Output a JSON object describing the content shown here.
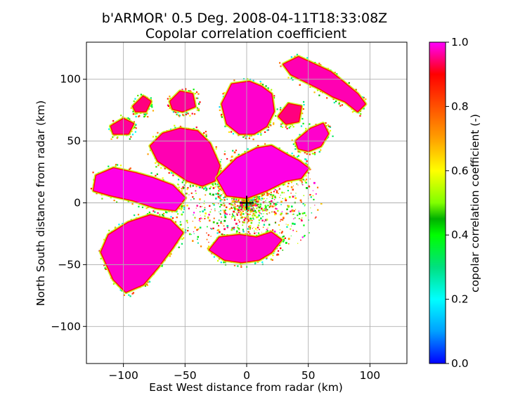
{
  "chart_data": {
    "type": "heatmap",
    "title": "b'ARMOR' 0.5 Deg. 2008-04-11T18:33:08Z",
    "subtitle": "Copolar correlation coefficient",
    "xlabel": "East West distance from radar (km)",
    "ylabel": "North South distance from radar (km)",
    "xlim": [
      -130,
      130
    ],
    "ylim": [
      -130,
      130
    ],
    "xticks": [
      -100,
      -50,
      0,
      50,
      100
    ],
    "yticks": [
      -100,
      -50,
      0,
      50,
      100
    ],
    "xtick_labels": [
      "−100",
      "−50",
      "0",
      "50",
      "100"
    ],
    "ytick_labels": [
      "−100",
      "−50",
      "0",
      "50",
      "100"
    ],
    "grid": true,
    "radar_marker": {
      "x": 0,
      "y": 0,
      "symbol": "+"
    },
    "colorbar": {
      "label": "copolar correlation coefficient (-)",
      "vmin": 0.0,
      "vmax": 1.0,
      "ticks": [
        0.0,
        0.2,
        0.4,
        0.6,
        0.8,
        1.0
      ],
      "tick_labels": [
        "0.0",
        "0.2",
        "0.4",
        "0.6",
        "0.8",
        "1.0"
      ],
      "colormap_stops": [
        {
          "v": 0.0,
          "color": "#0000ff"
        },
        {
          "v": 0.1,
          "color": "#00a0ff"
        },
        {
          "v": 0.2,
          "color": "#00ffff"
        },
        {
          "v": 0.3,
          "color": "#00e080"
        },
        {
          "v": 0.4,
          "color": "#00ff00"
        },
        {
          "v": 0.45,
          "color": "#00b000"
        },
        {
          "v": 0.5,
          "color": "#80ff00"
        },
        {
          "v": 0.6,
          "color": "#ffff00"
        },
        {
          "v": 0.7,
          "color": "#ffa000"
        },
        {
          "v": 0.8,
          "color": "#ff5000"
        },
        {
          "v": 0.9,
          "color": "#ff0000"
        },
        {
          "v": 1.0,
          "color": "#ff00ff"
        }
      ]
    },
    "echo_regions": [
      {
        "name": "northeast-arc",
        "rho": 0.97,
        "polygon": [
          [
            30,
            112
          ],
          [
            42,
            118
          ],
          [
            55,
            112
          ],
          [
            68,
            106
          ],
          [
            78,
            98
          ],
          [
            90,
            88
          ],
          [
            96,
            80
          ],
          [
            90,
            74
          ],
          [
            80,
            82
          ],
          [
            70,
            86
          ],
          [
            60,
            92
          ],
          [
            48,
            98
          ],
          [
            36,
            104
          ]
        ]
      },
      {
        "name": "north-central",
        "rho": 0.98,
        "polygon": [
          [
            -20,
            80
          ],
          [
            -12,
            96
          ],
          [
            2,
            98
          ],
          [
            12,
            94
          ],
          [
            20,
            88
          ],
          [
            22,
            74
          ],
          [
            16,
            62
          ],
          [
            6,
            56
          ],
          [
            -6,
            56
          ],
          [
            -16,
            64
          ]
        ]
      },
      {
        "name": "northwest-band",
        "rho": 0.97,
        "polygon": [
          [
            -78,
            46
          ],
          [
            -68,
            56
          ],
          [
            -54,
            60
          ],
          [
            -40,
            58
          ],
          [
            -30,
            48
          ],
          [
            -22,
            30
          ],
          [
            -26,
            18
          ],
          [
            -36,
            14
          ],
          [
            -48,
            18
          ],
          [
            -60,
            26
          ],
          [
            -72,
            34
          ]
        ]
      },
      {
        "name": "central-band",
        "rho": 0.99,
        "polygon": [
          [
            -24,
            20
          ],
          [
            -8,
            36
          ],
          [
            8,
            44
          ],
          [
            20,
            46
          ],
          [
            34,
            38
          ],
          [
            42,
            34
          ],
          [
            50,
            28
          ],
          [
            44,
            20
          ],
          [
            32,
            18
          ],
          [
            16,
            10
          ],
          [
            0,
            4
          ],
          [
            -16,
            6
          ]
        ]
      },
      {
        "name": "east-cell",
        "rho": 0.98,
        "polygon": [
          [
            40,
            50
          ],
          [
            52,
            60
          ],
          [
            62,
            64
          ],
          [
            66,
            56
          ],
          [
            60,
            46
          ],
          [
            50,
            42
          ],
          [
            42,
            44
          ]
        ]
      },
      {
        "name": "west-core",
        "rho": 0.99,
        "polygon": [
          [
            -122,
            22
          ],
          [
            -108,
            28
          ],
          [
            -90,
            24
          ],
          [
            -76,
            20
          ],
          [
            -60,
            14
          ],
          [
            -50,
            4
          ],
          [
            -58,
            -6
          ],
          [
            -74,
            -4
          ],
          [
            -92,
            2
          ],
          [
            -110,
            6
          ],
          [
            -124,
            10
          ]
        ]
      },
      {
        "name": "southwest-band",
        "rho": 0.98,
        "polygon": [
          [
            -118,
            -40
          ],
          [
            -108,
            -62
          ],
          [
            -98,
            -72
          ],
          [
            -84,
            -66
          ],
          [
            -72,
            -52
          ],
          [
            -60,
            -36
          ],
          [
            -52,
            -24
          ],
          [
            -62,
            -14
          ],
          [
            -78,
            -10
          ],
          [
            -96,
            -16
          ],
          [
            -112,
            -26
          ]
        ]
      },
      {
        "name": "south-cell",
        "rho": 0.98,
        "polygon": [
          [
            -30,
            -38
          ],
          [
            -18,
            -46
          ],
          [
            -4,
            -48
          ],
          [
            10,
            -46
          ],
          [
            20,
            -40
          ],
          [
            28,
            -30
          ],
          [
            20,
            -24
          ],
          [
            8,
            -28
          ],
          [
            -6,
            -26
          ],
          [
            -22,
            -28
          ]
        ]
      },
      {
        "name": "north-patch-a",
        "rho": 0.96,
        "polygon": [
          [
            -62,
            82
          ],
          [
            -54,
            90
          ],
          [
            -44,
            88
          ],
          [
            -42,
            78
          ],
          [
            -52,
            74
          ],
          [
            -60,
            76
          ]
        ]
      },
      {
        "name": "northwest-patch",
        "rho": 0.96,
        "polygon": [
          [
            -110,
            62
          ],
          [
            -100,
            68
          ],
          [
            -92,
            64
          ],
          [
            -96,
            56
          ],
          [
            -108,
            56
          ]
        ]
      },
      {
        "name": "north-patch-b",
        "rho": 0.95,
        "polygon": [
          [
            -92,
            78
          ],
          [
            -84,
            86
          ],
          [
            -78,
            82
          ],
          [
            -82,
            74
          ],
          [
            -90,
            74
          ]
        ]
      },
      {
        "name": "northeast-patch",
        "rho": 0.95,
        "polygon": [
          [
            26,
            70
          ],
          [
            34,
            80
          ],
          [
            44,
            78
          ],
          [
            42,
            66
          ],
          [
            32,
            64
          ]
        ]
      }
    ]
  }
}
